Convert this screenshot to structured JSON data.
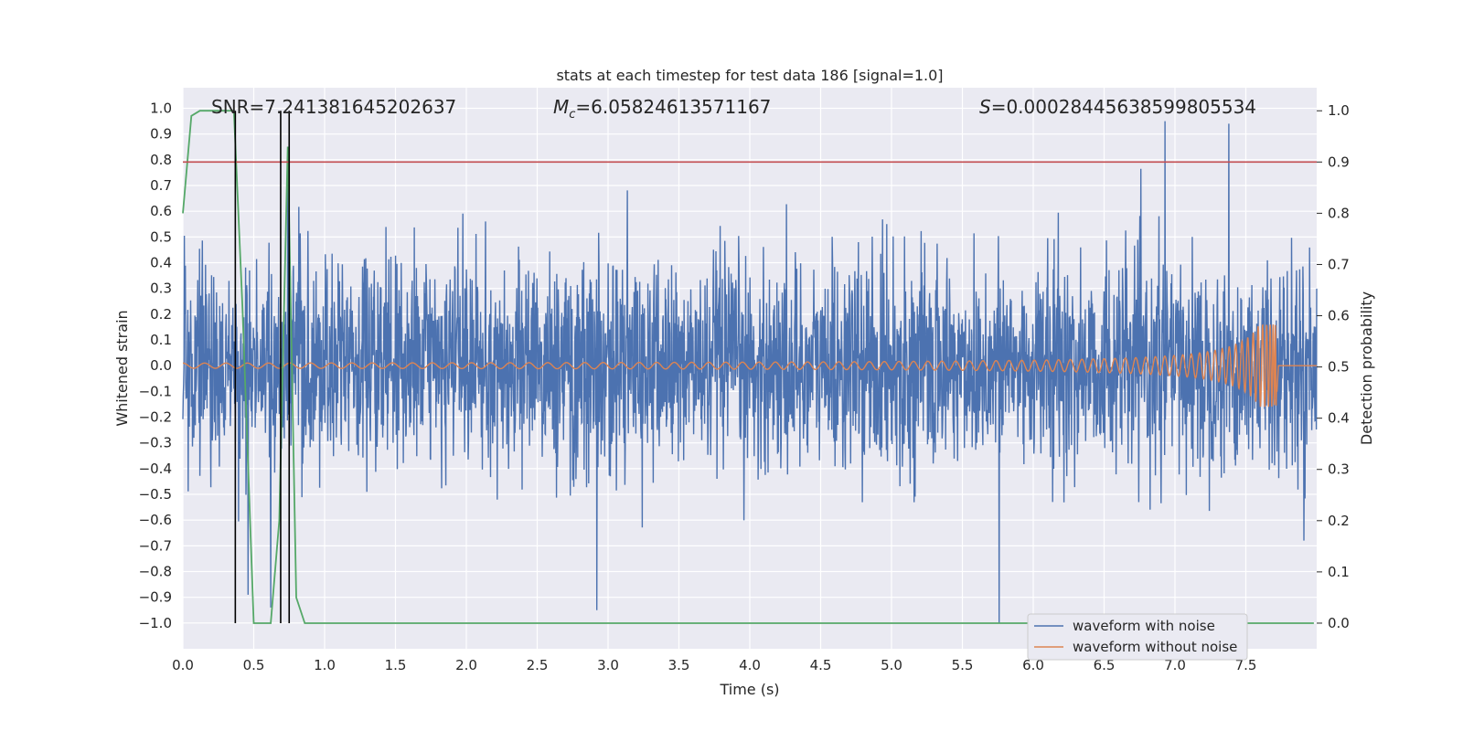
{
  "chart_data": {
    "type": "line",
    "title": "stats at each timestep for test data 186 [signal=1.0]",
    "xlabel": "Time (s)",
    "ylabel": "Whitened strain",
    "ylabel_right": "Detection probability",
    "xlim": [
      0.0,
      8.0
    ],
    "ylim": [
      -1.1,
      1.08
    ],
    "ylim_right": [
      -0.05,
      1.045
    ],
    "x_ticks": [
      0.0,
      0.5,
      1.0,
      1.5,
      2.0,
      2.5,
      3.0,
      3.5,
      4.0,
      4.5,
      5.0,
      5.5,
      6.0,
      6.5,
      7.0,
      7.5
    ],
    "x_tick_labels": [
      "0.0",
      "0.5",
      "1.0",
      "1.5",
      "2.0",
      "2.5",
      "3.0",
      "3.5",
      "4.0",
      "4.5",
      "5.0",
      "5.5",
      "6.0",
      "6.5",
      "7.0",
      "7.5"
    ],
    "y_ticks": [
      1.0,
      0.9,
      0.8,
      0.7,
      0.6,
      0.5,
      0.4,
      0.3,
      0.2,
      0.1,
      0.0,
      -0.1,
      -0.2,
      -0.3,
      -0.4,
      -0.5,
      -0.6,
      -0.7,
      -0.8,
      -0.9,
      -1.0
    ],
    "y_tick_labels": [
      "1.0",
      "0.9",
      "0.8",
      "0.7",
      "0.6",
      "0.5",
      "0.4",
      "0.3",
      "0.2",
      "0.1",
      "0.0",
      "−0.1",
      "−0.2",
      "−0.3",
      "−0.4",
      "−0.5",
      "−0.6",
      "−0.7",
      "−0.8",
      "−0.9",
      "−1.0"
    ],
    "y_right_ticks": [
      1.0,
      0.9,
      0.8,
      0.7,
      0.6,
      0.5,
      0.4,
      0.3,
      0.2,
      0.1,
      0.0
    ],
    "y_right_tick_labels": [
      "1.0",
      "0.9",
      "0.8",
      "0.7",
      "0.6",
      "0.5",
      "0.4",
      "0.3",
      "0.2",
      "0.1",
      "0.0"
    ],
    "grid": true,
    "legend_position": "bottom-right",
    "annotations": {
      "snr": "SNR=7.241381645202637",
      "mc_symbol": "M",
      "mc_subscript": "c",
      "mc_value": "=6.05824613571167",
      "s_symbol": "S",
      "s_value": "=0.00028445638599805534"
    },
    "series": [
      {
        "name": "waveform with noise",
        "color": "#4c72b0",
        "description_type": "noisy strain, amplitude envelope about ±0.45 with spikes to ±0.95",
        "duration_s": 8.0,
        "envelope_upper": 0.45,
        "envelope_lower": -0.45,
        "notable_spikes": [
          {
            "x": 0.46,
            "y": -0.89
          },
          {
            "x": 0.62,
            "y": -0.94
          },
          {
            "x": 2.92,
            "y": -0.95
          },
          {
            "x": 5.76,
            "y": -1.0
          },
          {
            "x": 6.93,
            "y": 0.95
          },
          {
            "x": 7.38,
            "y": 0.94
          },
          {
            "x": 0.74,
            "y": 0.83
          }
        ]
      },
      {
        "name": "waveform without noise",
        "color": "#dd8452",
        "description_type": "chirp: amplitude grows from 0.01 to 0.16 and merges at t=7.72 s, then flat",
        "amplitude_start": 0.01,
        "amplitude_peak": 0.16,
        "merger_time": 7.72
      },
      {
        "name": "",
        "axis": "right",
        "color": "#55a868",
        "x": [
          0.0,
          0.06,
          0.12,
          0.18,
          0.24,
          0.3,
          0.36,
          0.42,
          0.5,
          0.56,
          0.62,
          0.68,
          0.74,
          0.8,
          0.86,
          0.92,
          1.0,
          2.0,
          3.0,
          4.0,
          5.0,
          6.0,
          7.0,
          7.98
        ],
        "y": [
          0.8,
          0.99,
          1.0,
          1.0,
          1.0,
          1.0,
          1.0,
          0.62,
          0.0,
          0.0,
          0.0,
          0.2,
          0.93,
          0.05,
          0.0,
          0.0,
          0.0,
          0.0,
          0.0,
          0.0,
          0.0,
          0.0,
          0.0,
          0.0
        ]
      }
    ],
    "threshold_line": {
      "axis": "right",
      "y": 0.9,
      "color": "#c44e52"
    },
    "detection_vlines": {
      "x": [
        0.37,
        0.69,
        0.75
      ],
      "color": "#000000"
    }
  }
}
